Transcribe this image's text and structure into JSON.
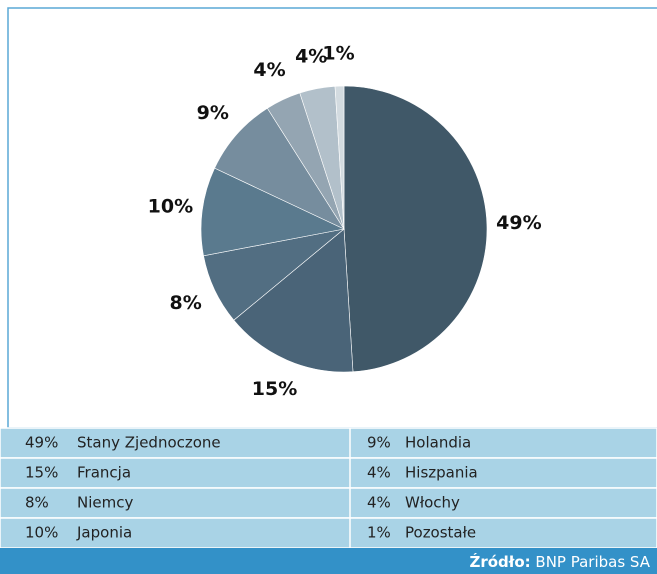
{
  "chart_data": {
    "type": "pie",
    "categories": [
      "Stany Zjednoczone",
      "Francja",
      "Niemcy",
      "Japonia",
      "Holandia",
      "Hiszpania",
      "Włochy",
      "Pozostałe"
    ],
    "values": [
      49,
      15,
      8,
      10,
      9,
      4,
      4,
      1
    ],
    "value_labels": [
      "49%",
      "15%",
      "8%",
      "10%",
      "9%",
      "4%",
      "4%",
      "1%"
    ],
    "colors": [
      "#405868",
      "#4a6478",
      "#526e82",
      "#5a7a8e",
      "#768d9e",
      "#94a5b2",
      "#b2c0ca",
      "#d3dbe0"
    ],
    "source_label": "Źródło:",
    "source": "BNP Paribas SA"
  }
}
